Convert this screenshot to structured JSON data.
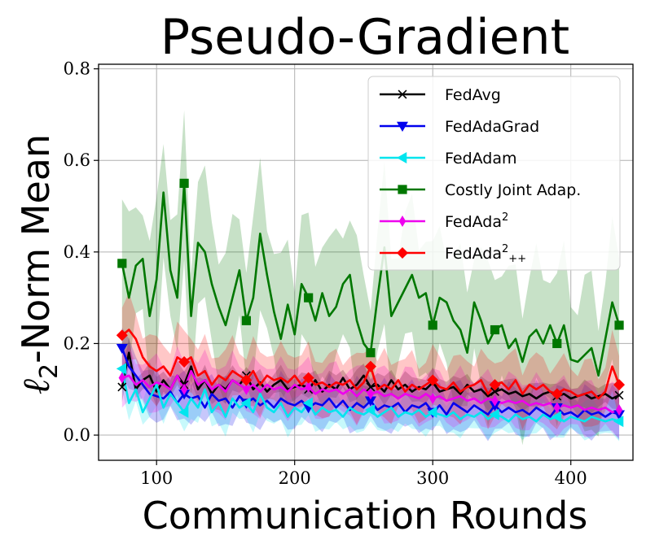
{
  "chart_data": {
    "type": "line",
    "title": "Pseudo-Gradient",
    "xlabel": "Communication Rounds",
    "ylabel_symbol": "ℓ",
    "ylabel_subscript": "2",
    "ylabel_rest": "-Norm Mean",
    "xlim": [
      58,
      445
    ],
    "ylim": [
      -0.055,
      0.81
    ],
    "xticks": [
      100,
      200,
      300,
      400
    ],
    "yticks": [
      0.0,
      0.2,
      0.4,
      0.6,
      0.8
    ],
    "xtick_labels": [
      "100",
      "200",
      "300",
      "400"
    ],
    "ytick_labels": [
      "0.0",
      "0.2",
      "0.4",
      "0.6",
      "0.8"
    ],
    "grid": true,
    "legend_position": "top-right",
    "x": [
      75,
      80,
      85,
      90,
      95,
      100,
      105,
      110,
      115,
      120,
      125,
      130,
      135,
      140,
      145,
      150,
      155,
      160,
      165,
      170,
      175,
      180,
      185,
      190,
      195,
      200,
      205,
      210,
      215,
      220,
      225,
      230,
      235,
      240,
      245,
      250,
      255,
      260,
      265,
      270,
      275,
      280,
      285,
      290,
      295,
      300,
      305,
      310,
      315,
      320,
      325,
      330,
      335,
      340,
      345,
      350,
      355,
      360,
      365,
      370,
      375,
      380,
      385,
      390,
      395,
      400,
      405,
      410,
      415,
      420,
      425,
      430,
      435
    ],
    "series": [
      {
        "name": "FedAvg",
        "color": "#000000",
        "marker": "x",
        "values": [
          0.105,
          0.18,
          0.1,
          0.12,
          0.13,
          0.095,
          0.12,
          0.1,
          0.13,
          0.11,
          0.15,
          0.1,
          0.12,
          0.09,
          0.11,
          0.1,
          0.12,
          0.11,
          0.13,
          0.1,
          0.115,
          0.095,
          0.11,
          0.12,
          0.1,
          0.105,
          0.11,
          0.1,
          0.12,
          0.095,
          0.11,
          0.1,
          0.125,
          0.1,
          0.11,
          0.13,
          0.105,
          0.11,
          0.095,
          0.12,
          0.1,
          0.11,
          0.095,
          0.105,
          0.1,
          0.115,
          0.095,
          0.1,
          0.105,
          0.09,
          0.11,
          0.095,
          0.1,
          0.085,
          0.095,
          0.1,
          0.09,
          0.095,
          0.085,
          0.09,
          0.08,
          0.09,
          0.095,
          0.085,
          0.09,
          0.08,
          0.085,
          0.09,
          0.08,
          0.085,
          0.09,
          0.08,
          0.087
        ],
        "spread": 0.025
      },
      {
        "name": "FedAdaGrad",
        "color": "#0000ee",
        "marker": "triangle-down",
        "values": [
          0.19,
          0.15,
          0.13,
          0.11,
          0.09,
          0.085,
          0.08,
          0.095,
          0.07,
          0.09,
          0.08,
          0.085,
          0.06,
          0.09,
          0.075,
          0.08,
          0.06,
          0.085,
          0.07,
          0.08,
          0.065,
          0.075,
          0.06,
          0.08,
          0.07,
          0.065,
          0.075,
          0.06,
          0.07,
          0.065,
          0.08,
          0.06,
          0.075,
          0.055,
          0.07,
          0.06,
          0.075,
          0.055,
          0.065,
          0.06,
          0.07,
          0.05,
          0.065,
          0.06,
          0.07,
          0.05,
          0.065,
          0.045,
          0.07,
          0.06,
          0.05,
          0.065,
          0.055,
          0.045,
          0.065,
          0.05,
          0.06,
          0.05,
          0.055,
          0.045,
          0.06,
          0.05,
          0.04,
          0.06,
          0.045,
          0.05,
          0.04,
          0.055,
          0.045,
          0.05,
          0.04,
          0.05,
          0.045
        ],
        "spread": 0.045
      },
      {
        "name": "FedAdam",
        "color": "#00e5ee",
        "marker": "triangle-left",
        "values": [
          0.145,
          0.07,
          0.1,
          0.05,
          0.08,
          0.11,
          0.06,
          0.09,
          0.07,
          0.05,
          0.08,
          0.06,
          0.1,
          0.05,
          0.07,
          0.04,
          0.08,
          0.06,
          0.07,
          0.05,
          0.09,
          0.06,
          0.05,
          0.07,
          0.04,
          0.06,
          0.05,
          0.07,
          0.045,
          0.06,
          0.05,
          0.055,
          0.04,
          0.06,
          0.05,
          0.045,
          0.055,
          0.04,
          0.05,
          0.06,
          0.04,
          0.05,
          0.045,
          0.055,
          0.04,
          0.05,
          0.045,
          0.04,
          0.05,
          0.035,
          0.045,
          0.04,
          0.05,
          0.035,
          0.045,
          0.04,
          0.03,
          0.045,
          0.035,
          0.04,
          0.03,
          0.045,
          0.035,
          0.04,
          0.03,
          0.04,
          0.035,
          0.03,
          0.04,
          0.035,
          0.03,
          0.035,
          0.03
        ],
        "spread": 0.035
      },
      {
        "name": "Costly Joint Adap.",
        "color": "#007700",
        "marker": "square",
        "values": [
          0.375,
          0.3,
          0.37,
          0.385,
          0.26,
          0.34,
          0.53,
          0.36,
          0.3,
          0.55,
          0.26,
          0.42,
          0.4,
          0.33,
          0.28,
          0.24,
          0.3,
          0.36,
          0.25,
          0.3,
          0.44,
          0.35,
          0.27,
          0.21,
          0.285,
          0.22,
          0.33,
          0.3,
          0.25,
          0.31,
          0.26,
          0.28,
          0.33,
          0.35,
          0.25,
          0.2,
          0.18,
          0.3,
          0.41,
          0.26,
          0.29,
          0.32,
          0.35,
          0.3,
          0.31,
          0.24,
          0.3,
          0.29,
          0.25,
          0.23,
          0.18,
          0.29,
          0.25,
          0.2,
          0.23,
          0.24,
          0.19,
          0.21,
          0.16,
          0.215,
          0.23,
          0.2,
          0.24,
          0.2,
          0.24,
          0.165,
          0.16,
          0.175,
          0.19,
          0.13,
          0.21,
          0.29,
          0.24
        ],
        "spread": 0.14
      },
      {
        "name": "FedAda2",
        "name_base": "FedAda",
        "name_sup": "2",
        "name_sub": "",
        "color": "#ee00ee",
        "marker": "thin-diamond",
        "values": [
          0.125,
          0.13,
          0.11,
          0.12,
          0.105,
          0.115,
          0.11,
          0.1,
          0.13,
          0.1,
          0.14,
          0.11,
          0.12,
          0.1,
          0.11,
          0.095,
          0.12,
          0.11,
          0.1,
          0.11,
          0.095,
          0.11,
          0.1,
          0.105,
          0.095,
          0.11,
          0.1,
          0.105,
          0.09,
          0.1,
          0.095,
          0.1,
          0.09,
          0.1,
          0.085,
          0.1,
          0.09,
          0.095,
          0.085,
          0.09,
          0.08,
          0.09,
          0.085,
          0.08,
          0.09,
          0.08,
          0.085,
          0.075,
          0.08,
          0.085,
          0.075,
          0.08,
          0.07,
          0.08,
          0.075,
          0.07,
          0.075,
          0.07,
          0.075,
          0.065,
          0.07,
          0.065,
          0.07,
          0.06,
          0.065,
          0.06,
          0.065,
          0.055,
          0.06,
          0.055,
          0.06,
          0.05,
          0.055
        ],
        "spread": 0.05
      },
      {
        "name": "FedAda2++",
        "name_base": "FedAda",
        "name_sup": "2",
        "name_sub": "++",
        "color": "#ff0000",
        "marker": "diamond",
        "values": [
          0.218,
          0.23,
          0.21,
          0.17,
          0.15,
          0.14,
          0.15,
          0.13,
          0.17,
          0.16,
          0.17,
          0.13,
          0.14,
          0.11,
          0.13,
          0.12,
          0.14,
          0.13,
          0.12,
          0.14,
          0.11,
          0.13,
          0.12,
          0.125,
          0.115,
          0.13,
          0.11,
          0.125,
          0.11,
          0.115,
          0.105,
          0.115,
          0.11,
          0.12,
          0.1,
          0.115,
          0.15,
          0.1,
          0.11,
          0.1,
          0.12,
          0.095,
          0.11,
          0.1,
          0.11,
          0.12,
          0.105,
          0.1,
          0.115,
          0.095,
          0.105,
          0.11,
          0.12,
          0.09,
          0.11,
          0.115,
          0.1,
          0.12,
          0.09,
          0.11,
          0.1,
          0.11,
          0.095,
          0.09,
          0.1,
          0.095,
          0.085,
          0.09,
          0.095,
          0.08,
          0.095,
          0.15,
          0.11
        ],
        "spread": 0.06
      }
    ]
  }
}
